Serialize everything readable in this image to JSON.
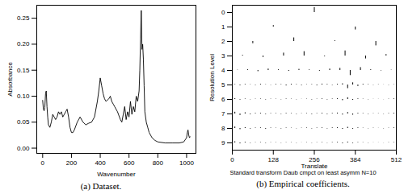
{
  "chart_data": [
    {
      "type": "line",
      "title": "(a) Dataset.",
      "x_label": "Wavenumber",
      "y_label": "Absorbance",
      "color": "#000000",
      "x": [
        0,
        5,
        10,
        15,
        20,
        25,
        30,
        35,
        40,
        50,
        60,
        70,
        80,
        90,
        100,
        110,
        120,
        130,
        140,
        150,
        160,
        170,
        180,
        190,
        200,
        210,
        220,
        240,
        260,
        280,
        300,
        320,
        340,
        360,
        380,
        390,
        400,
        410,
        420,
        430,
        440,
        460,
        470,
        480,
        490,
        500,
        520,
        540,
        550,
        560,
        570,
        580,
        590,
        600,
        610,
        620,
        630,
        640,
        650,
        660,
        670,
        675,
        680,
        685,
        690,
        695,
        700,
        705,
        710,
        720,
        730,
        740,
        760,
        780,
        800,
        850,
        900,
        950,
        980,
        1000,
        1005,
        1010,
        1015,
        1020,
        1024
      ],
      "values": [
        0.092,
        0.075,
        0.072,
        0.078,
        0.105,
        0.11,
        0.08,
        0.06,
        0.045,
        0.04,
        0.05,
        0.065,
        0.06,
        0.055,
        0.06,
        0.07,
        0.065,
        0.07,
        0.06,
        0.065,
        0.07,
        0.075,
        0.06,
        0.04,
        0.03,
        0.03,
        0.035,
        0.05,
        0.06,
        0.05,
        0.045,
        0.048,
        0.05,
        0.06,
        0.09,
        0.11,
        0.135,
        0.12,
        0.105,
        0.095,
        0.09,
        0.095,
        0.1,
        0.09,
        0.085,
        0.08,
        0.07,
        0.055,
        0.05,
        0.065,
        0.08,
        0.055,
        0.07,
        0.06,
        0.09,
        0.065,
        0.08,
        0.07,
        0.1,
        0.09,
        0.11,
        0.15,
        0.21,
        0.265,
        0.19,
        0.2,
        0.17,
        0.12,
        0.07,
        0.05,
        0.04,
        0.03,
        0.02,
        0.015,
        0.012,
        0.01,
        0.01,
        0.01,
        0.012,
        0.02,
        0.03,
        0.035,
        0.025,
        0.02,
        0.022
      ],
      "xlim": [
        -41,
        1065
      ],
      "xticks": [
        0,
        200,
        400,
        600,
        800,
        1000
      ],
      "ylim": [
        -0.01,
        0.275
      ],
      "yticks": [
        {
          "value": 0,
          "label": "0.00"
        },
        {
          "value": 0.05,
          "label": "0.05"
        },
        {
          "value": 0.1,
          "label": "0.10"
        },
        {
          "value": 0.15,
          "label": "0.15"
        },
        {
          "value": 0.2,
          "label": "0.20"
        },
        {
          "value": 0.25,
          "label": "0.25"
        }
      ]
    },
    {
      "type": "wavelet",
      "title": "(b) Empirical coefficients.",
      "x_label": "Translate",
      "y_label": "Resolution Level",
      "subtitle": "Standard transform Daub cmpct on least asymm N=10",
      "color": "#000000",
      "xlim": [
        0,
        512
      ],
      "xticks": [
        0,
        128,
        256,
        384,
        512
      ],
      "ylim": [
        9.5,
        -0.5
      ],
      "yticks": [
        0,
        1,
        2,
        3,
        4,
        5,
        6,
        7,
        8,
        9
      ],
      "levels": [
        {
          "level": 0,
          "x": [
            256
          ],
          "values": [
            0.35
          ]
        },
        {
          "level": 1,
          "x": [
            128,
            384
          ],
          "values": [
            0.1,
            -0.2
          ]
        },
        {
          "level": 2,
          "x": [
            64,
            192,
            320,
            448
          ],
          "values": [
            -0.15,
            0.25,
            0.05,
            -0.3
          ]
        },
        {
          "level": 3,
          "x": [
            32,
            96,
            160,
            224,
            288,
            352,
            416,
            480
          ],
          "values": [
            0.05,
            -0.1,
            0.2,
            0.3,
            -0.05,
            0.35,
            -0.2,
            0.1
          ]
        },
        {
          "level": 4,
          "x": [
            16,
            48,
            80,
            112,
            144,
            176,
            208,
            240,
            272,
            304,
            336,
            368,
            400,
            432,
            464,
            496
          ],
          "values": [
            0.02,
            0.05,
            -0.08,
            0.1,
            0.05,
            -0.06,
            0.08,
            0.04,
            -0.05,
            0.1,
            0.15,
            -0.35,
            0.2,
            0.05,
            -0.03,
            0.02
          ]
        },
        {
          "level": 5,
          "x": [
            8,
            24,
            40,
            56,
            72,
            88,
            104,
            120,
            136,
            152,
            168,
            184,
            200,
            216,
            232,
            248,
            264,
            280,
            296,
            312,
            328,
            344,
            360,
            376,
            392,
            408,
            424,
            440,
            456,
            472,
            488,
            504
          ],
          "values": [
            0.03,
            -0.05,
            0.04,
            0.02,
            -0.03,
            0.05,
            0.02,
            -0.02,
            0.04,
            0.03,
            -0.06,
            0.05,
            0.03,
            -0.04,
            0.02,
            0.03,
            -0.05,
            0.06,
            0.04,
            -0.03,
            0.05,
            0.08,
            -0.25,
            0.15,
            -0.1,
            0.05,
            0.03,
            -0.02,
            0.02,
            0.01,
            -0.02,
            0.02
          ]
        },
        {
          "level": 6,
          "x": [
            8,
            24,
            40,
            56,
            72,
            88,
            104,
            120,
            136,
            152,
            168,
            184,
            200,
            216,
            232,
            248,
            264,
            280,
            296,
            312,
            328,
            344,
            360,
            376,
            392,
            408,
            424,
            440,
            456,
            472,
            488,
            504
          ],
          "values": [
            0.06,
            -0.04,
            0.03,
            -0.02,
            0.02,
            0.03,
            -0.03,
            0.02,
            0.02,
            -0.02,
            0.03,
            0.02,
            -0.02,
            0.01,
            0.02,
            -0.03,
            0.02,
            0.04,
            -0.03,
            0.03,
            0.05,
            -0.08,
            0.12,
            -0.06,
            0.04,
            0.02,
            -0.02,
            0.01,
            0.01,
            -0.01,
            0.02,
            0.04
          ]
        },
        {
          "level": 7,
          "x": [
            8,
            24,
            40,
            56,
            72,
            88,
            104,
            120,
            136,
            152,
            168,
            184,
            200,
            216,
            232,
            248,
            264,
            280,
            296,
            312,
            328,
            344,
            360,
            376,
            392,
            408,
            424,
            440,
            456,
            472,
            488,
            504
          ],
          "values": [
            0.12,
            -0.1,
            0.08,
            -0.05,
            0.04,
            0.05,
            -0.04,
            0.03,
            0.03,
            -0.03,
            0.04,
            0.03,
            -0.03,
            0.02,
            0.03,
            -0.04,
            0.03,
            0.05,
            -0.04,
            0.04,
            0.06,
            -0.07,
            0.1,
            -0.08,
            0.05,
            0.03,
            -0.03,
            0.02,
            0.02,
            -0.02,
            0.03,
            0.05
          ]
        },
        {
          "level": 8,
          "x": [
            8,
            24,
            40,
            56,
            72,
            88,
            104,
            120,
            136,
            152,
            168,
            184,
            200,
            216,
            232,
            248,
            264,
            280,
            296,
            312,
            328,
            344,
            360,
            376,
            392,
            408,
            424,
            440,
            456,
            472,
            488,
            504
          ],
          "values": [
            0.1,
            -0.08,
            0.06,
            -0.04,
            0.03,
            0.04,
            -0.05,
            0.03,
            0.02,
            -0.03,
            0.03,
            0.02,
            -0.02,
            0.02,
            0.03,
            -0.03,
            0.03,
            0.04,
            -0.03,
            0.04,
            0.05,
            -0.06,
            0.08,
            -0.05,
            0.04,
            0.02,
            -0.02,
            0.02,
            0.01,
            -0.02,
            0.02,
            0.04
          ]
        },
        {
          "level": 9,
          "x": [
            8,
            24,
            40,
            56,
            72,
            88,
            104,
            120,
            136,
            152,
            168,
            184,
            200,
            216,
            232,
            248,
            264,
            280,
            296,
            312,
            328,
            344,
            360,
            376,
            392,
            408,
            424,
            440,
            456,
            472,
            488,
            504
          ],
          "values": [
            0.08,
            -0.06,
            0.05,
            -0.03,
            0.02,
            0.03,
            -0.03,
            0.02,
            0.02,
            -0.02,
            0.02,
            0.02,
            -0.02,
            0.01,
            0.02,
            -0.02,
            0.02,
            0.03,
            -0.02,
            0.03,
            0.04,
            -0.05,
            0.06,
            -0.04,
            0.03,
            0.02,
            -0.02,
            0.01,
            0.01,
            -0.01,
            0.02,
            0.03
          ]
        }
      ]
    }
  ]
}
